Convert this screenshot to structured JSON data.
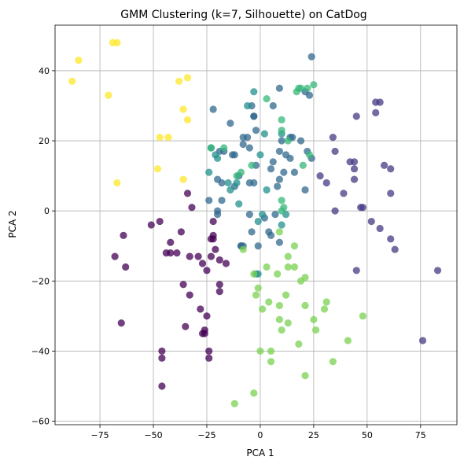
{
  "chart_data": {
    "type": "scatter",
    "title": "GMM Clustering (k=7, Silhouette) on CatDog",
    "xlabel": "PCA 1",
    "ylabel": "PCA 2",
    "xlim": [
      -96,
      92
    ],
    "ylim": [
      -61,
      53
    ],
    "xticks": [
      -75,
      -50,
      -25,
      0,
      25,
      50,
      75
    ],
    "yticks": [
      -60,
      -40,
      -20,
      0,
      20,
      40
    ],
    "xtick_labels": [
      "−75",
      "−50",
      "−25",
      "0",
      "25",
      "50",
      "75"
    ],
    "ytick_labels": [
      "−60",
      "−40",
      "−20",
      "0",
      "20",
      "40"
    ],
    "grid": true,
    "legend": "none",
    "marker_alpha": 0.75,
    "series": [
      {
        "color": "#440154",
        "points": [
          [
            -51,
            -4
          ],
          [
            -47,
            -3
          ],
          [
            -44,
            -12
          ],
          [
            -42,
            -9
          ],
          [
            -42,
            -12
          ],
          [
            -39,
            -12
          ],
          [
            -37,
            -6
          ],
          [
            -34,
            5
          ],
          [
            -32,
            1
          ],
          [
            -33,
            -13
          ],
          [
            -29,
            -13
          ],
          [
            -27,
            -15
          ],
          [
            -25,
            -17
          ],
          [
            -23,
            -8
          ],
          [
            -22,
            -7
          ],
          [
            -22,
            -3
          ],
          [
            -23,
            -13
          ],
          [
            -21,
            -11
          ],
          [
            -19,
            -14
          ],
          [
            -19,
            -21
          ],
          [
            -36,
            -21
          ],
          [
            -33,
            -24
          ],
          [
            -28,
            -28
          ],
          [
            -25,
            -30
          ],
          [
            -26,
            -35
          ],
          [
            -24,
            -42
          ],
          [
            -24,
            -40
          ],
          [
            -19,
            -23
          ],
          [
            -64,
            -7
          ],
          [
            -63,
            -16
          ],
          [
            -68,
            -13
          ],
          [
            -65,
            -32
          ],
          [
            -46,
            -40
          ],
          [
            -46,
            -42
          ],
          [
            -46,
            -50
          ],
          [
            -35,
            -33
          ],
          [
            -27,
            -35
          ],
          [
            -26,
            -34
          ],
          [
            -22,
            -8
          ],
          [
            -16,
            -15
          ]
        ]
      },
      {
        "color": "#443983",
        "points": [
          [
            45,
            -17
          ],
          [
            47,
            1
          ],
          [
            48,
            1
          ],
          [
            52,
            -3
          ],
          [
            56,
            -5
          ],
          [
            56,
            31
          ],
          [
            58,
            13
          ],
          [
            61,
            12
          ],
          [
            61,
            5
          ],
          [
            61,
            -8
          ],
          [
            63,
            -11
          ],
          [
            76,
            -37
          ],
          [
            83,
            -17
          ],
          [
            44,
            14
          ],
          [
            44,
            12
          ],
          [
            42,
            14
          ],
          [
            45,
            27
          ],
          [
            35,
            17
          ],
          [
            34,
            21
          ],
          [
            35,
            0
          ],
          [
            39,
            5
          ],
          [
            31,
            8
          ],
          [
            28,
            10
          ],
          [
            54,
            31
          ],
          [
            54,
            28
          ],
          [
            44,
            9
          ]
        ]
      },
      {
        "color": "#31688e",
        "points": [
          [
            -22,
            29
          ],
          [
            -19,
            17
          ],
          [
            -20,
            9
          ],
          [
            -18,
            8
          ],
          [
            -17,
            17
          ],
          [
            -14,
            25
          ],
          [
            -13,
            16
          ],
          [
            -12,
            16
          ],
          [
            -12,
            7
          ],
          [
            -10,
            10
          ],
          [
            -8,
            19
          ],
          [
            -8,
            21
          ],
          [
            -6,
            21
          ],
          [
            -5,
            18
          ],
          [
            -5,
            8
          ],
          [
            -3,
            8
          ],
          [
            -2,
            23
          ],
          [
            -3,
            27
          ],
          [
            -2,
            13
          ],
          [
            -9,
            -10
          ],
          [
            -8,
            -10
          ],
          [
            -1,
            -10
          ],
          [
            -5,
            -1
          ],
          [
            -4,
            -6
          ],
          [
            2,
            -2
          ],
          [
            4,
            -6
          ],
          [
            5,
            -7
          ],
          [
            6,
            14
          ],
          [
            6,
            30
          ],
          [
            7,
            -1
          ],
          [
            9,
            -9
          ],
          [
            10,
            20
          ],
          [
            12,
            16
          ],
          [
            11,
            11
          ],
          [
            14,
            21
          ],
          [
            14,
            15
          ],
          [
            15,
            21
          ],
          [
            16,
            11
          ],
          [
            19,
            20
          ],
          [
            21,
            6
          ],
          [
            22,
            17
          ],
          [
            21,
            34
          ],
          [
            23,
            33
          ],
          [
            24,
            15
          ],
          [
            24,
            44
          ],
          [
            9,
            17
          ],
          [
            9,
            35
          ],
          [
            5,
            12
          ],
          [
            9,
            9
          ],
          [
            8,
            7
          ],
          [
            -24,
            3
          ],
          [
            -20,
            0
          ],
          [
            -20,
            -1
          ],
          [
            -18,
            3
          ],
          [
            -9,
            -10
          ],
          [
            -4,
            30
          ],
          [
            -3,
            27
          ]
        ]
      },
      {
        "color": "#21908d",
        "points": [
          [
            -24,
            11
          ],
          [
            -23,
            18
          ],
          [
            -21,
            16
          ],
          [
            -15,
            8
          ],
          [
            -14,
            6
          ],
          [
            -11,
            8
          ],
          [
            -3,
            34
          ],
          [
            2,
            22
          ],
          [
            10,
            22
          ],
          [
            12,
            -1
          ],
          [
            -1,
            -3
          ],
          [
            1,
            -1
          ],
          [
            -2,
            -18
          ],
          [
            -1,
            -18
          ],
          [
            3,
            6
          ],
          [
            -20,
            15
          ],
          [
            -10,
            2
          ],
          [
            10,
            -4
          ],
          [
            -6,
            30
          ],
          [
            0,
            16
          ]
        ]
      },
      {
        "color": "#35b779",
        "points": [
          [
            -23,
            18
          ],
          [
            -17,
            18
          ],
          [
            -11,
            10
          ],
          [
            -9,
            11
          ],
          [
            -4,
            13
          ],
          [
            3,
            32
          ],
          [
            10,
            23
          ],
          [
            10,
            26
          ],
          [
            13,
            20
          ],
          [
            17,
            34
          ],
          [
            18,
            35
          ],
          [
            19,
            35
          ],
          [
            20,
            13
          ],
          [
            23,
            16
          ],
          [
            25,
            36
          ],
          [
            22,
            35
          ],
          [
            10,
            3
          ],
          [
            11,
            1
          ],
          [
            10,
            0
          ]
        ]
      },
      {
        "color": "#7ad151",
        "points": [
          [
            -12,
            -55
          ],
          [
            -3,
            -52
          ],
          [
            0,
            -40
          ],
          [
            1,
            -28
          ],
          [
            4,
            -26
          ],
          [
            5,
            -40
          ],
          [
            5,
            -43
          ],
          [
            -1,
            -22
          ],
          [
            -2,
            -24
          ],
          [
            3,
            -16
          ],
          [
            8,
            -18
          ],
          [
            9,
            -27
          ],
          [
            9,
            -31
          ],
          [
            10,
            -34
          ],
          [
            12,
            -24
          ],
          [
            13,
            -13
          ],
          [
            13,
            -32
          ],
          [
            16,
            -16
          ],
          [
            18,
            -38
          ],
          [
            19,
            -20
          ],
          [
            21,
            -19
          ],
          [
            21,
            -27
          ],
          [
            21,
            -47
          ],
          [
            25,
            -31
          ],
          [
            26,
            -34
          ],
          [
            30,
            -28
          ],
          [
            31,
            -26
          ],
          [
            34,
            -43
          ],
          [
            41,
            -37
          ],
          [
            48,
            -30
          ],
          [
            -8,
            -11
          ],
          [
            -3,
            -18
          ],
          [
            9,
            -6
          ],
          [
            13,
            -16
          ],
          [
            16,
            -10
          ]
        ]
      },
      {
        "color": "#fde725",
        "points": [
          [
            -88,
            37
          ],
          [
            -85,
            43
          ],
          [
            -71,
            33
          ],
          [
            -69,
            48
          ],
          [
            -67,
            48
          ],
          [
            -67,
            8
          ],
          [
            -48,
            12
          ],
          [
            -47,
            21
          ],
          [
            -43,
            21
          ],
          [
            -38,
            37
          ],
          [
            -36,
            29
          ],
          [
            -36,
            9
          ],
          [
            -34,
            26
          ],
          [
            -34,
            38
          ]
        ]
      }
    ]
  }
}
